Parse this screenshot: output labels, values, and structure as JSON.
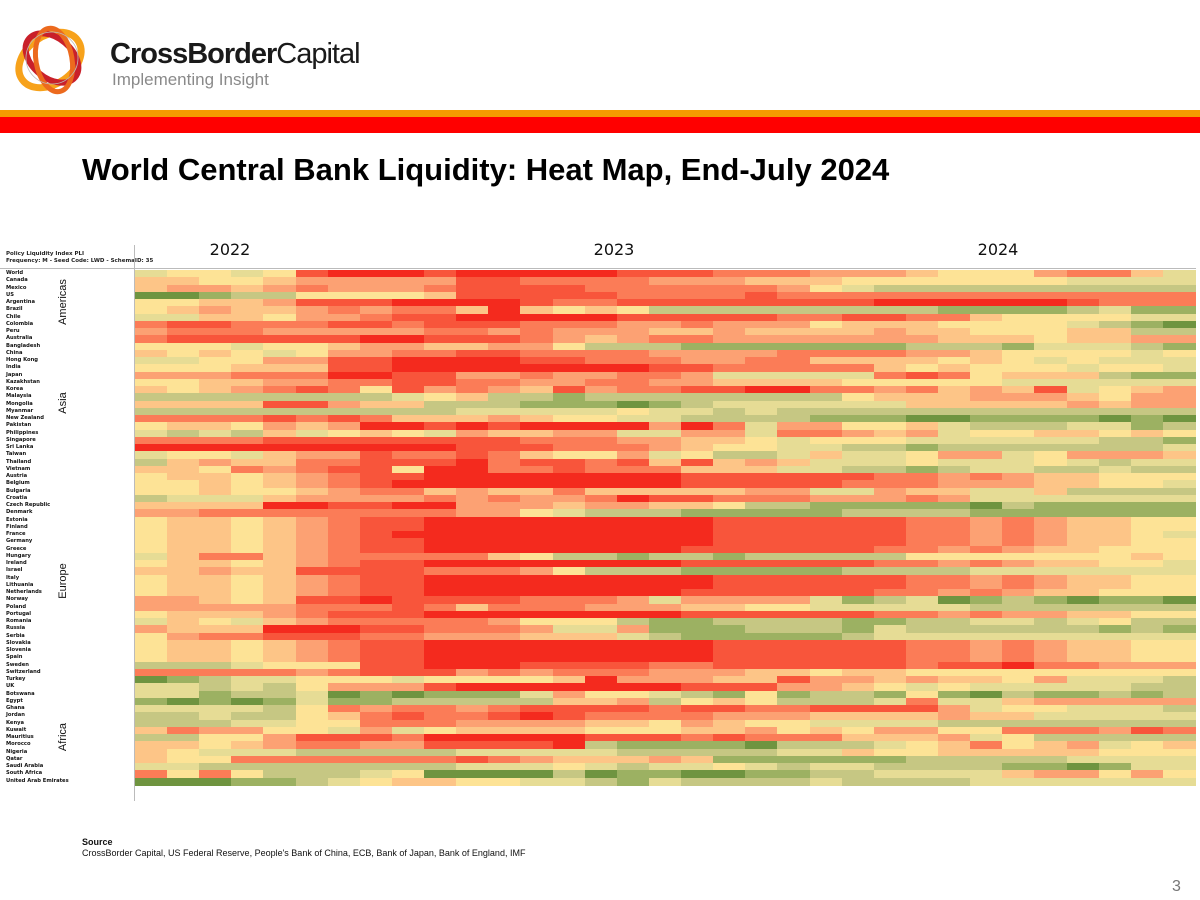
{
  "header": {
    "brand_bold": "CrossBorder",
    "brand_light": "Capital",
    "tagline": "Implementing Insight",
    "colors": {
      "orange_band": "#f59a00",
      "red_band": "#ff0000"
    }
  },
  "slide": {
    "title": "World Central Bank Liquidity: Heat Map, End-July 2024",
    "source_heading": "Source",
    "source_text": "CrossBorder Capital, US Federal Reserve, People's Bank of China, ECB, Bank of Japan, Bank of England, IMF",
    "page_number": "3"
  },
  "chart_data": {
    "type": "heatmap",
    "title": "World Central Bank Liquidity: Heat Map, End-July 2024",
    "meta_line1": "Policy Liquidity Index PLI",
    "meta_line2": "Frequency: M - Seed Code: LWD - SchemaID: 35",
    "x_period": "Nov 2021 - Jul 2024 (monthly, 33 columns)",
    "year_labels": [
      "2022",
      "2023",
      "2024"
    ],
    "value_scale": "0 (dark green, weak liquidity) to 9 (bright red, strong), approximate levels",
    "palette": [
      "#6f9440",
      "#9cb162",
      "#c6c783",
      "#e6dc95",
      "#fde396",
      "#fdc587",
      "#fca173",
      "#fb7c57",
      "#f8553b",
      "#f42a1e"
    ],
    "regions": [
      {
        "name": "Americas",
        "rows": [
          0,
          8
        ]
      },
      {
        "name": "Asia",
        "rows": [
          9,
          27
        ]
      },
      {
        "name": "Europe",
        "rows": [
          28,
          57
        ]
      },
      {
        "name": "Africa",
        "rows": [
          58,
          70
        ]
      }
    ],
    "rows": [
      {
        "name": "World",
        "v": "344348999899999888777666544467753"
      },
      {
        "name": "Canada",
        "v": "554456666688777766655544444443333"
      },
      {
        "name": "Mexico",
        "v": "566567666788887777776432222222222"
      },
      {
        "name": "US",
        "v": "001224444588888777787777777777777"
      },
      {
        "name": "Argentina",
        "v": "445568889999877888888889999998777"
      },
      {
        "name": "Brazil",
        "v": "456556767759545422222222211112311"
      },
      {
        "name": "Chile",
        "v": "335546678899999888887788775444433"
      },
      {
        "name": "Colombia",
        "v": "788777887888777667666455544443210"
      },
      {
        "name": "Peru",
        "v": "677766666776766655655556554445522"
      },
      {
        "name": "Australia",
        "v": "788888899888765677666666655545566"
      },
      {
        "name": "Bangladesh",
        "v": "444344566556642221111111222133321"
      },
      {
        "name": "China",
        "v": "545434667788777766667777665444434"
      },
      {
        "name": "Hong Kong",
        "v": "334466889999887776677555545434333"
      },
      {
        "name": "India",
        "v": "444555889999999988777775454443443"
      },
      {
        "name": "Japan",
        "v": "666777998866766776333337874555211"
      },
      {
        "name": "Kazakhstan",
        "v": "445566778877667766555544444333333"
      },
      {
        "name": "Korea",
        "v": "545678748676586778899776756583456"
      },
      {
        "name": "Malaysia",
        "v": "222222223452212222222245556665466"
      },
      {
        "name": "Mongolia",
        "v": "555588655222111012333333555556566"
      },
      {
        "name": "Myanmar",
        "v": "222222222233333433232222222222222"
      },
      {
        "name": "New Zealand",
        "v": "777787875556544332222111001111010"
      },
      {
        "name": "Pakistan",
        "v": "455465699898999969736644532223312"
      },
      {
        "name": "Philippines",
        "v": "323253454365566336637765634455454"
      },
      {
        "name": "Singapore",
        "v": "777788888888777665543444333333221"
      },
      {
        "name": "Sri Lanka",
        "v": "999999999988877765443322122222223"
      },
      {
        "name": "Taiwan",
        "v": "344356687787544634223533466346665"
      },
      {
        "name": "Thailand",
        "v": "256557788897887858565333433343233"
      },
      {
        "name": "Vietnam",
        "v": "554767884997787775553322123322322"
      },
      {
        "name": "Austria",
        "v": "455456788999999998888887767655444"
      },
      {
        "name": "Belgium",
        "v": "445456789999999998888877766655443"
      },
      {
        "name": "Bulgaria",
        "v": "445445677565575555566336553352222"
      },
      {
        "name": "Croatia",
        "v": "233356666767667988777666763333333"
      },
      {
        "name": "Czech Republic",
        "v": "555599889966656655422111110211111"
      },
      {
        "name": "Denmark",
        "v": "667777777766432221111122221111111"
      },
      {
        "name": "Estonia",
        "v": "455456788999999999888888776765544"
      },
      {
        "name": "Finland",
        "v": "455456788999999999888888776765544"
      },
      {
        "name": "France",
        "v": "455456789999999999888888776765543"
      },
      {
        "name": "Germany",
        "v": "455456788999999999888888776765544"
      },
      {
        "name": "Greece",
        "v": "455456788999999998888887767655444"
      },
      {
        "name": "Hungary",
        "v": "357756777775422122122222444444454"
      },
      {
        "name": "Ireland",
        "v": "455456788999999998888887767655443"
      },
      {
        "name": "Israel",
        "v": "556558888777642221111122223333333"
      },
      {
        "name": "Italy",
        "v": "455456788999999999888888776765544"
      },
      {
        "name": "Lithuania",
        "v": "455456788999999999888888776765544"
      },
      {
        "name": "Netherlands",
        "v": "455456788999999998888887767655444"
      },
      {
        "name": "Norway",
        "v": "665458898888777636666312301210110"
      },
      {
        "name": "Poland",
        "v": "666667778757776665544333332222222"
      },
      {
        "name": "Portugal",
        "v": "455567888999999998888887767665544"
      },
      {
        "name": "Romania",
        "v": "354356777776444211222211223323422"
      },
      {
        "name": "Russia",
        "v": "655599988777633611122213222222121"
      },
      {
        "name": "Serbia",
        "v": "467788877666555321111123333333333"
      },
      {
        "name": "Slovakia",
        "v": "455456788999999999888888776765544"
      },
      {
        "name": "Slovenia",
        "v": "455456788999999999888888776765544"
      },
      {
        "name": "Spain",
        "v": "455456788999999999888888776765544"
      },
      {
        "name": "Sweden",
        "v": "222344488999888877888888788977666"
      },
      {
        "name": "Switzerland",
        "v": "777776788867677766655455444444444"
      },
      {
        "name": "Turkey",
        "v": "012334443444459666558665655463332"
      },
      {
        "name": "UK",
        "v": "332324666899999998886654343333322"
      },
      {
        "name": "Botswana",
        "v": "331223010111364432141221410211212"
      },
      {
        "name": "Egypt",
        "v": "101013112222255624542223733566666"
      },
      {
        "name": "Ghana",
        "v": "333324767767888878877888863443332"
      },
      {
        "name": "Jordan",
        "v": "223224578778987777666555565533333"
      },
      {
        "name": "Kenya",
        "v": "222334477766665546544333322222222"
      },
      {
        "name": "Kuwait",
        "v": "576644363455554445564546644777687"
      },
      {
        "name": "Mauritius",
        "v": "224468887999998887877755563422222"
      },
      {
        "name": "Morocco",
        "v": "554567766888892111102223457456345"
      },
      {
        "name": "Nigeria",
        "v": "543332222233333222223354455555444"
      },
      {
        "name": "Qatar",
        "v": "544777777787655565111111222223333"
      },
      {
        "name": "Saudi Arabia",
        "v": "332222222233343233432332222110133"
      },
      {
        "name": "South Africa",
        "v": "747422234000020110011223333566464"
      },
      {
        "name": "United Arab Emirates",
        "v": "000112345544332132222322223333333"
      }
    ]
  }
}
